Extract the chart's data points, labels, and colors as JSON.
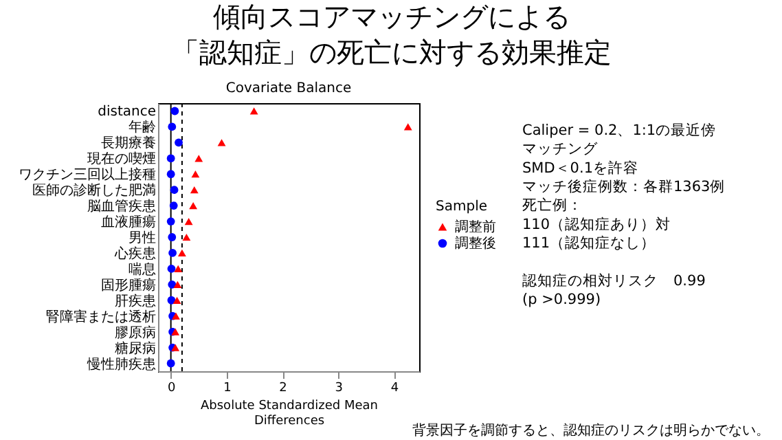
{
  "chart_data": {
    "type": "scatter",
    "title": "傾向スコアマッチングによる「認知症」の死亡に対する効果推定",
    "subtitle": "Covariate Balance",
    "xlabel": "Absolute Standardized Mean\nDifferences",
    "legend_title": "Sample",
    "legend": "right",
    "orientation": "horizontal",
    "categories": [
      "distance",
      "年齢",
      "長期療養",
      "現在の喫煙",
      "ワクチン三回以上接種",
      "医師の診断した肥満",
      "脳血管疾患",
      "血液腫瘍",
      "男性",
      "心疾患",
      "喘息",
      "固形腫瘍",
      "肝疾患",
      "腎障害または透析",
      "膠原病",
      "糖尿病",
      "慢性肺疾患"
    ],
    "series": [
      {
        "name": "調整前",
        "color": "#ff0000",
        "marker": "triangle",
        "values": [
          1.49,
          4.25,
          0.91,
          0.5,
          0.44,
          0.42,
          0.4,
          0.32,
          0.28,
          0.2,
          0.13,
          0.12,
          0.11,
          0.09,
          0.08,
          0.08,
          null
        ]
      },
      {
        "name": "調整後",
        "color": "#0000ff",
        "marker": "circle",
        "values": [
          0.07,
          0.02,
          0.14,
          0.0,
          0.0,
          0.06,
          0.05,
          0.0,
          0.02,
          0.03,
          0.01,
          0.02,
          0.01,
          0.03,
          0.03,
          0.03,
          0.0
        ]
      }
    ],
    "xlim": [
      -0.23,
      4.45
    ],
    "xticks": [
      0,
      1,
      2,
      3,
      4
    ],
    "grid": false,
    "ref_lines": [
      {
        "axis": "x",
        "value": 0,
        "line_style": "solid",
        "color": "#000000"
      },
      {
        "axis": "x",
        "value": 0.2,
        "line_style": "dashed",
        "color": "#000000"
      }
    ],
    "annotations": [
      "Caliper = 0.2、1:1の最近傍マッチング",
      "SMD＜0.1を許容",
      "マッチ後症例数：各群1363例",
      "死亡例：",
      "110（認知症あり）対",
      "111（認知症なし）",
      "認知症の相対リスク　0.99\n(p >0.999)",
      "背景因子を調節すると、認知症のリスクは明らかでない。"
    ]
  }
}
